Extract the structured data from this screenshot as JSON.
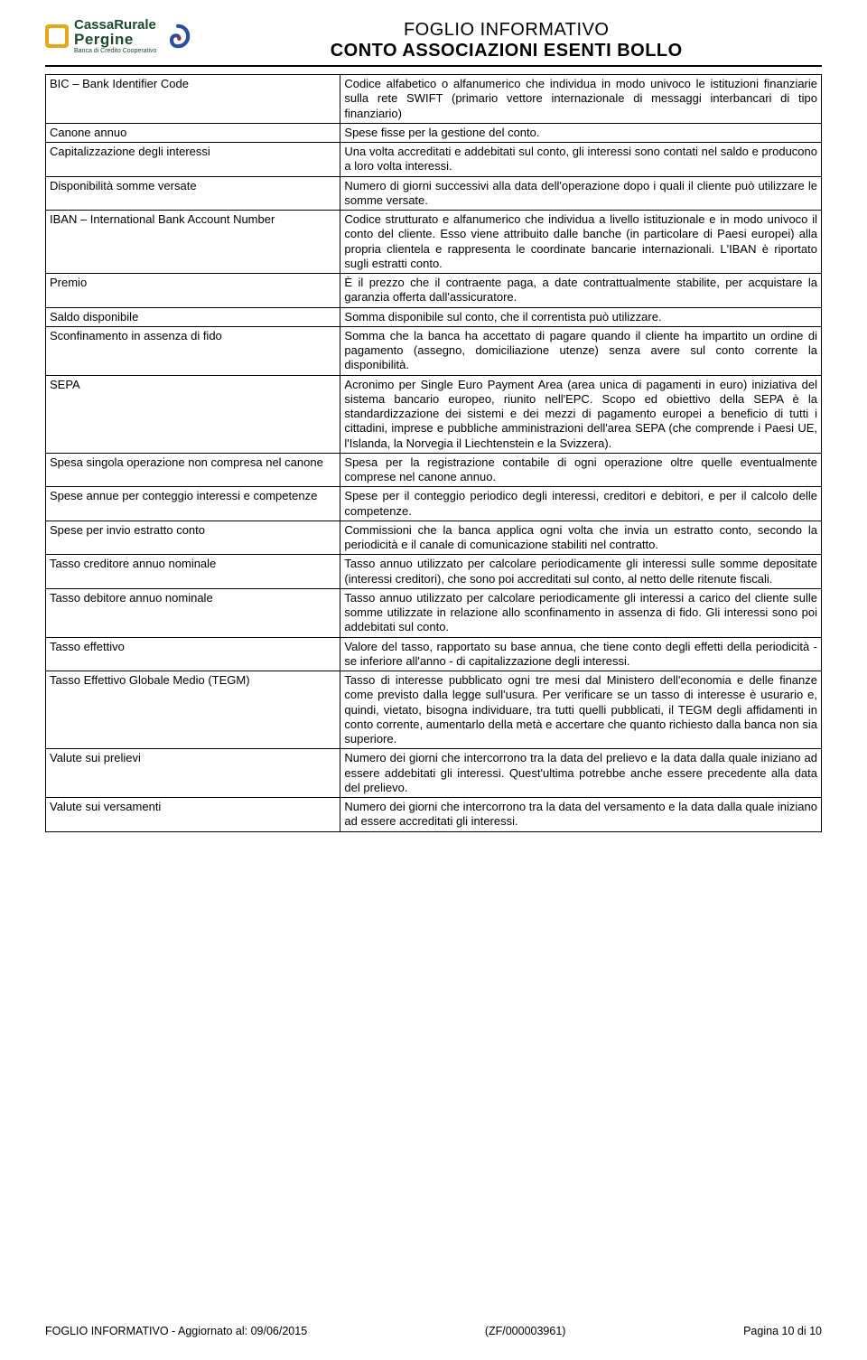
{
  "header": {
    "logo_line1": "CassaRurale",
    "logo_line2": "Pergine",
    "logo_sub": "Banca di Credito Cooperativo",
    "title1": "FOGLIO INFORMATIVO",
    "title2": "CONTO ASSOCIAZIONI ESENTI BOLLO"
  },
  "glossary": [
    {
      "term": "BIC – Bank Identifier Code",
      "def": "Codice alfabetico o alfanumerico che individua in modo univoco le istituzioni finanziarie sulla rete SWIFT (primario vettore internazionale di messaggi interbancari di tipo finanziario)"
    },
    {
      "term": "Canone annuo",
      "def": "Spese fisse per la gestione del conto."
    },
    {
      "term": "Capitalizzazione degli interessi",
      "def": "Una volta accreditati e addebitati sul conto, gli interessi sono contati nel saldo e producono a loro volta interessi."
    },
    {
      "term": "Disponibilità somme versate",
      "def": "Numero di giorni successivi alla data dell'operazione dopo i quali il cliente può utilizzare le somme versate."
    },
    {
      "term": "IBAN – International Bank Account Number",
      "def": "Codice strutturato e alfanumerico che individua a livello istituzionale e in modo univoco il conto del cliente. Esso viene attribuito dalle banche (in particolare di Paesi europei) alla propria clientela e rappresenta le coordinate bancarie internazionali. L'IBAN è riportato sugli estratti conto."
    },
    {
      "term": "Premio",
      "def": "È il prezzo che il contraente paga, a date contrattualmente stabilite, per acquistare la garanzia offerta dall'assicuratore."
    },
    {
      "term": "Saldo disponibile",
      "def": "Somma disponibile sul conto, che il correntista può utilizzare."
    },
    {
      "term": "Sconfinamento in assenza di fido",
      "def": "Somma che la banca ha accettato di pagare quando il cliente ha impartito un ordine di pagamento (assegno, domiciliazione utenze) senza avere sul conto corrente la disponibilità."
    },
    {
      "term": "SEPA",
      "def": "Acronimo per Single Euro Payment Area (area unica di pagamenti in euro) iniziativa del sistema bancario europeo, riunito nell'EPC.\nScopo ed obiettivo della SEPA è la standardizzazione dei sistemi e dei mezzi di pagamento europei a beneficio di tutti i cittadini, imprese e pubbliche amministrazioni dell'area SEPA (che comprende i Paesi UE, l'Islanda, la Norvegia il Liechtenstein e la Svizzera)."
    },
    {
      "term": "Spesa singola operazione non compresa nel canone",
      "def": "Spesa per la registrazione contabile di ogni operazione oltre quelle eventualmente comprese nel canone annuo."
    },
    {
      "term": "Spese annue per conteggio interessi e competenze",
      "def": "Spese per il conteggio periodico degli interessi, creditori e debitori, e per il calcolo delle competenze."
    },
    {
      "term": "Spese per invio estratto conto",
      "def": "Commissioni che la banca applica ogni volta che invia un estratto conto, secondo la periodicità e il canale di comunicazione stabiliti nel contratto."
    },
    {
      "term": "Tasso creditore annuo nominale",
      "def": "Tasso annuo utilizzato per calcolare periodicamente gli interessi sulle somme depositate (interessi creditori), che sono poi accreditati sul conto, al netto delle ritenute fiscali."
    },
    {
      "term": "Tasso debitore annuo nominale",
      "def": "Tasso annuo utilizzato per calcolare periodicamente gli interessi a carico del cliente sulle somme utilizzate in relazione allo sconfinamento in assenza di fido. Gli interessi sono poi addebitati sul conto."
    },
    {
      "term": "Tasso effettivo",
      "def": "Valore del tasso, rapportato su base annua, che tiene conto degli effetti della periodicità - se inferiore all'anno - di capitalizzazione degli interessi."
    },
    {
      "term": "Tasso Effettivo Globale Medio (TEGM)",
      "def": "Tasso di interesse pubblicato ogni tre mesi dal Ministero dell'economia e delle finanze come previsto dalla legge sull'usura. Per verificare se un tasso di interesse è usurario e, quindi, vietato, bisogna individuare, tra tutti quelli pubblicati, il TEGM degli affidamenti in conto corrente, aumentarlo della metà e accertare che quanto richiesto dalla banca non sia superiore."
    },
    {
      "term": "Valute sui prelievi",
      "def": "Numero dei giorni che intercorrono tra la data del prelievo e la data dalla quale iniziano ad essere addebitati gli interessi. Quest'ultima potrebbe anche essere precedente alla data del prelievo."
    },
    {
      "term": "Valute sui versamenti",
      "def": "Numero dei giorni che intercorrono tra la data del versamento e la data dalla quale iniziano ad essere accreditati gli interessi."
    }
  ],
  "footer": {
    "left": "FOGLIO INFORMATIVO - Aggiornato al: 09/06/2015",
    "center": "(ZF/000003961)",
    "right": "Pagina 10 di 10"
  }
}
